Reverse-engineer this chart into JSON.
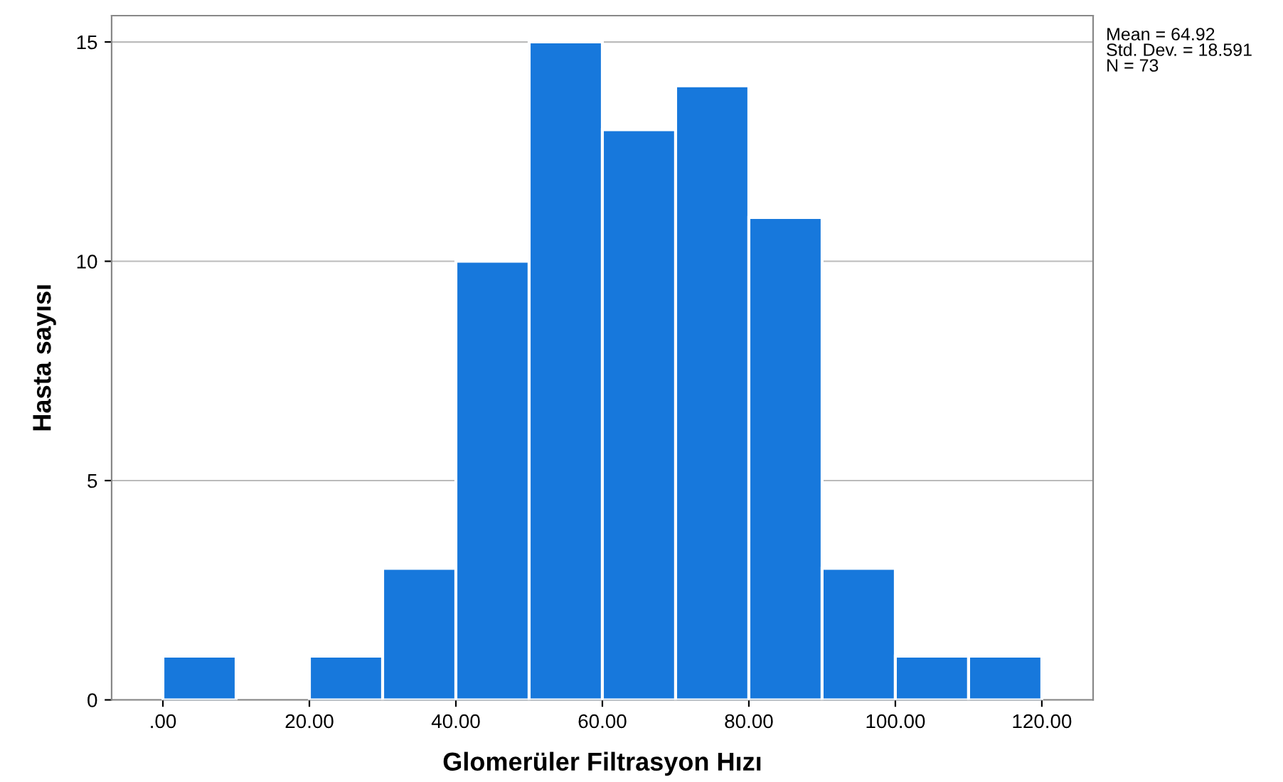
{
  "chart_data": {
    "type": "histogram",
    "xlabel": "Glomerüler Filtrasyon Hızı",
    "ylabel": "Hasta sayısı",
    "bins": [
      0,
      10,
      20,
      30,
      40,
      50,
      60,
      70,
      80,
      90,
      100,
      110,
      120
    ],
    "values": [
      1,
      0,
      1,
      3,
      10,
      15,
      13,
      14,
      11,
      3,
      1,
      1
    ],
    "color": "#1778dc",
    "xlim": [
      -7,
      127
    ],
    "ylim": [
      0,
      15.6
    ],
    "xticks": [
      {
        "value": 0,
        "label": ".00"
      },
      {
        "value": 20,
        "label": "20.00"
      },
      {
        "value": 40,
        "label": "40.00"
      },
      {
        "value": 60,
        "label": "60.00"
      },
      {
        "value": 80,
        "label": "80.00"
      },
      {
        "value": 100,
        "label": "100.00"
      },
      {
        "value": 120,
        "label": "120.00"
      }
    ],
    "yticks": [
      0,
      5,
      10,
      15
    ],
    "grid": "y",
    "annotations": [
      "Mean = 64.92",
      "Std. Dev. = 18.591",
      "N = 73"
    ]
  }
}
